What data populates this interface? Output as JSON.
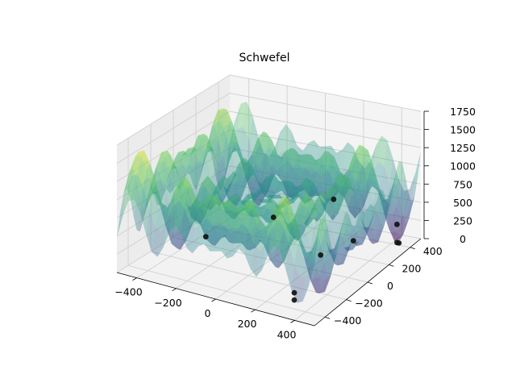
{
  "chart_data": {
    "type": "surface3d",
    "title": "Schwefel",
    "xlabel": "",
    "ylabel": "",
    "zlabel": "",
    "xlim": [
      -500,
      500
    ],
    "ylim": [
      -500,
      500
    ],
    "zlim": [
      0,
      1750
    ],
    "x_ticks": [
      -400,
      -200,
      0,
      200,
      400
    ],
    "y_ticks": [
      -400,
      -200,
      0,
      200,
      400
    ],
    "z_ticks": [
      0,
      250,
      500,
      750,
      1000,
      1250,
      1500,
      1750
    ],
    "x_tick_labels": [
      "−400",
      "−200",
      "0",
      "200",
      "400"
    ],
    "y_tick_labels": [
      "−400",
      "−200",
      "0",
      "200",
      "400"
    ],
    "z_tick_labels": [
      "0",
      "250",
      "500",
      "750",
      "1000",
      "1250",
      "1500",
      "1750"
    ],
    "colormap": "viridis",
    "surface_alpha": 0.35,
    "grid": true,
    "points": [
      {
        "x": -330,
        "y": -5,
        "z": 120
      },
      {
        "x": 420,
        "y": 420,
        "z": 0
      },
      {
        "x": 430,
        "y": 420,
        "z": 0
      },
      {
        "x": 260,
        "y": 300,
        "z": 80
      },
      {
        "x": 180,
        "y": 140,
        "z": 20
      },
      {
        "x": 420,
        "y": 420,
        "z": 250
      },
      {
        "x": 300,
        "y": -320,
        "z": 0
      },
      {
        "x": 300,
        "y": -320,
        "z": 100
      },
      {
        "x": -30,
        "y": 80,
        "z": 480
      },
      {
        "x": 140,
        "y": 330,
        "z": 550
      }
    ]
  }
}
